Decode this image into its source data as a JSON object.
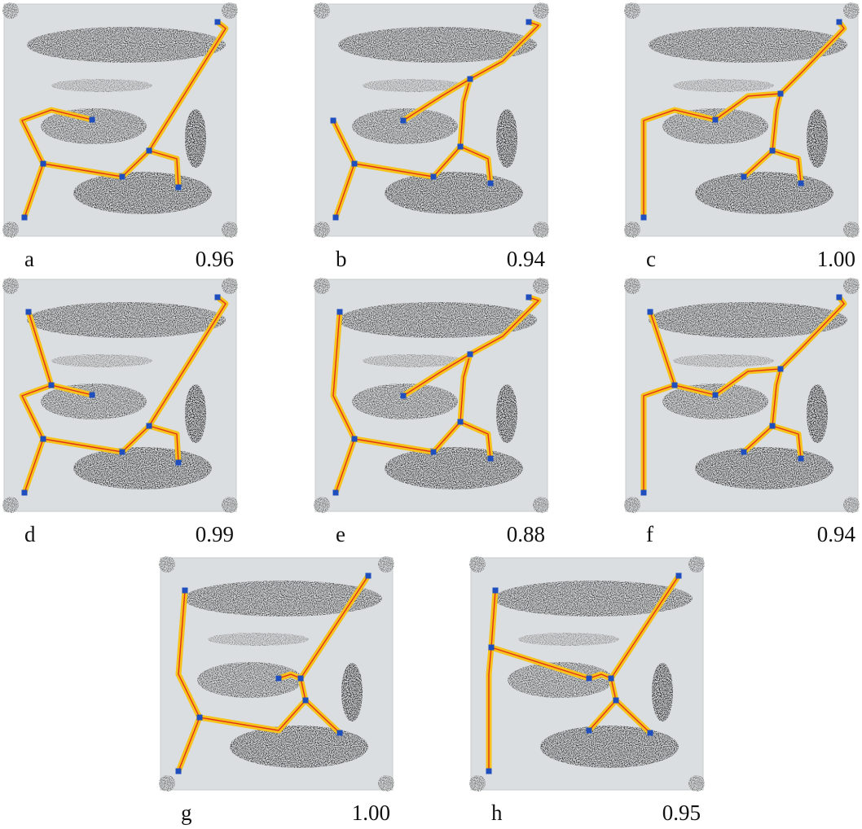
{
  "panels": [
    {
      "label": "a",
      "score": "0.96"
    },
    {
      "label": "b",
      "score": "0.94"
    },
    {
      "label": "c",
      "score": "1.00"
    },
    {
      "label": "d",
      "score": "0.99"
    },
    {
      "label": "e",
      "score": "0.88"
    },
    {
      "label": "f",
      "score": "0.94"
    },
    {
      "label": "g",
      "score": "1.00"
    },
    {
      "label": "h",
      "score": "0.95"
    }
  ]
}
